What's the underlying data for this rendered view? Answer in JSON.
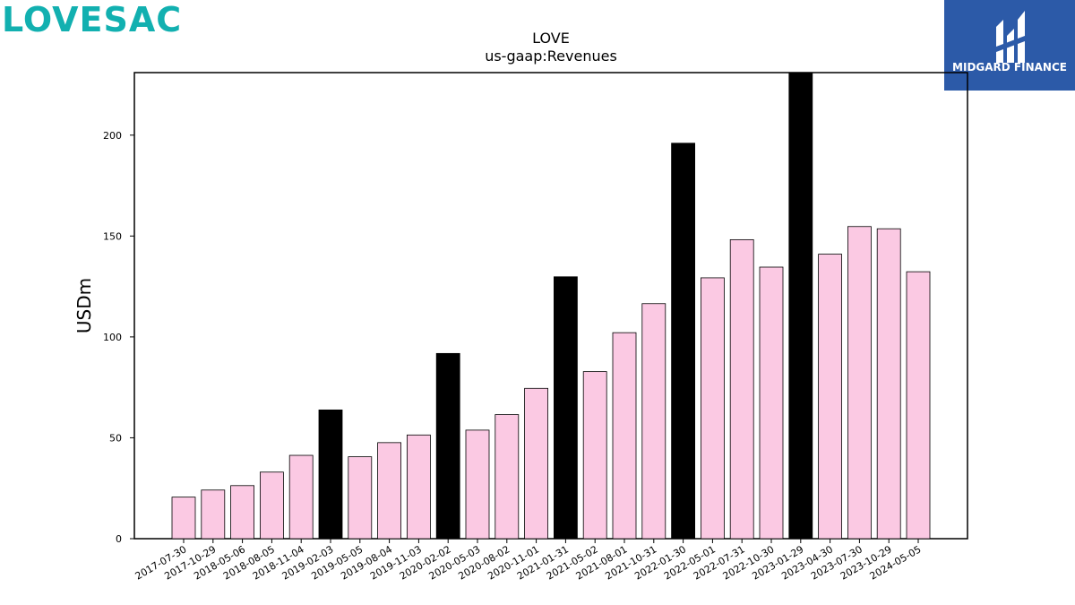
{
  "brand": {
    "logo_text": "LOVESAC"
  },
  "partner": {
    "name": "MIDGARD FINANCE",
    "bg_color": "#2c5aa8"
  },
  "chart_data": {
    "type": "bar",
    "title": "LOVE",
    "subtitle": "us-gaap:Revenues",
    "xlabel": "",
    "ylabel": "USDm",
    "ylim": [
      0,
      231
    ],
    "yticks": [
      0,
      50,
      100,
      150,
      200
    ],
    "grid": false,
    "colors": {
      "quarter": "#fbc9e3",
      "fiscal_year": "#000000",
      "edge": "#000000"
    },
    "categories": [
      "2017-07-30",
      "2017-10-29",
      "2018-05-06",
      "2018-08-05",
      "2018-11-04",
      "2019-02-03",
      "2019-05-05",
      "2019-08-04",
      "2019-11-03",
      "2020-02-02",
      "2020-05-03",
      "2020-08-02",
      "2020-11-01",
      "2021-01-31",
      "2021-05-02",
      "2021-08-01",
      "2021-10-31",
      "2022-01-30",
      "2022-05-01",
      "2022-07-31",
      "2022-10-30",
      "2023-01-29",
      "2023-04-30",
      "2023-07-30",
      "2023-10-29",
      "2024-05-05"
    ],
    "values": [
      20.6,
      24.1,
      26.3,
      33.0,
      41.3,
      63.8,
      40.6,
      47.6,
      51.4,
      91.8,
      53.8,
      61.5,
      74.5,
      129.8,
      82.8,
      102.1,
      116.5,
      196.0,
      129.3,
      148.2,
      134.6,
      231.0,
      141.0,
      154.7,
      153.6,
      132.3
    ],
    "highlight": [
      false,
      false,
      false,
      false,
      false,
      true,
      false,
      false,
      false,
      true,
      false,
      false,
      false,
      true,
      false,
      false,
      false,
      true,
      false,
      false,
      false,
      true,
      false,
      false,
      false,
      false
    ]
  }
}
